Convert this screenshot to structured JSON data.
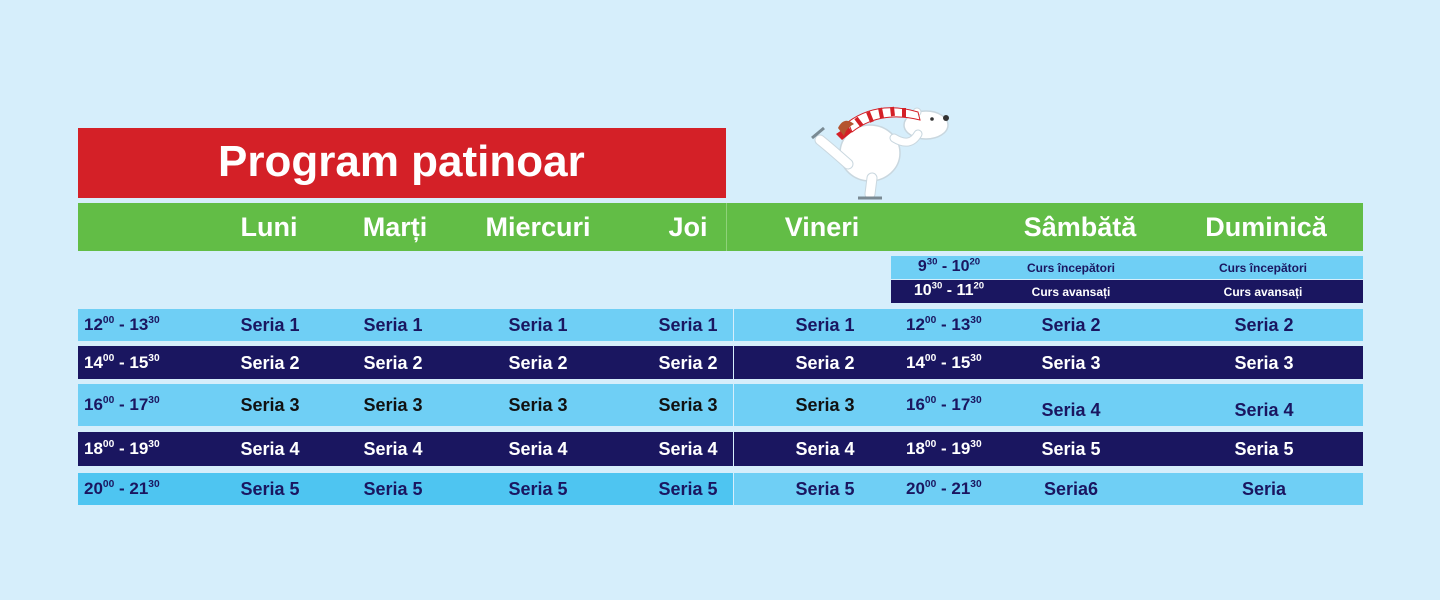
{
  "title": "Program patinoar",
  "days": [
    "Luni",
    "Marți",
    "Miercuri",
    "Joi",
    "Vineri",
    "Sâmbătă",
    "Duminică"
  ],
  "courses": [
    {
      "start_h": "9",
      "start_m": "30",
      "end_h": "10",
      "end_m": "20",
      "saturday": "Curs începători",
      "sunday": "Curs începători",
      "bg": "#6fcff5",
      "fg": "#1a1660"
    },
    {
      "start_h": "10",
      "start_m": "30",
      "end_h": "11",
      "end_m": "20",
      "saturday": "Curs avansați",
      "sunday": "Curs avansați",
      "bg": "#1a1660",
      "fg": "#ffffff"
    }
  ],
  "rows": [
    {
      "start_h": "12",
      "start_m": "00",
      "end_h": "13",
      "end_m": "30",
      "weekday": [
        "Seria 1",
        "Seria 1",
        "Seria 1",
        "Seria 1",
        "Seria 1"
      ],
      "weekend": [
        "Seria 2",
        "Seria 2"
      ],
      "bg": "#6fcff5",
      "bg_weekend": "#6fcff5",
      "fg": "#1a1660"
    },
    {
      "start_h": "14",
      "start_m": "00",
      "end_h": "15",
      "end_m": "30",
      "weekday": [
        "Seria 2",
        "Seria 2",
        "Seria 2",
        "Seria 2",
        "Seria 2"
      ],
      "weekend": [
        "Seria 3",
        "Seria 3"
      ],
      "bg": "#1a1660",
      "bg_weekend": "#1a1660",
      "fg": "#ffffff"
    },
    {
      "start_h": "16",
      "start_m": "00",
      "end_h": "17",
      "end_m": "30",
      "weekday": [
        "Seria 3",
        "Seria 3",
        "Seria 3",
        "Seria 3",
        "Seria 3"
      ],
      "weekend": [
        "Seria 4",
        "Seria 4"
      ],
      "bg": "#6fcff5",
      "bg_weekend": "#6fcff5",
      "fg": "#111111",
      "fg_weekend": "#1a1660"
    },
    {
      "start_h": "18",
      "start_m": "00",
      "end_h": "19",
      "end_m": "30",
      "weekday": [
        "Seria 4",
        "Seria 4",
        "Seria 4",
        "Seria 4",
        "Seria 4"
      ],
      "weekend": [
        "Seria 5",
        "Seria 5"
      ],
      "bg": "#1a1660",
      "bg_weekend": "#1a1660",
      "fg": "#ffffff"
    },
    {
      "start_h": "20",
      "start_m": "00",
      "end_h": "21",
      "end_m": "30",
      "weekday": [
        "Seria 5",
        "Seria 5",
        "Seria 5",
        "Seria 5",
        "Seria 5"
      ],
      "weekend": [
        "Seria6",
        "Seria"
      ],
      "bg": "#4ec5f1",
      "bg_weekend": "#6fcff5",
      "fg": "#1a1660"
    }
  ],
  "colors": {
    "background": "#d6eefb",
    "title_bg": "#d42027",
    "days_bg": "#62bd46"
  }
}
